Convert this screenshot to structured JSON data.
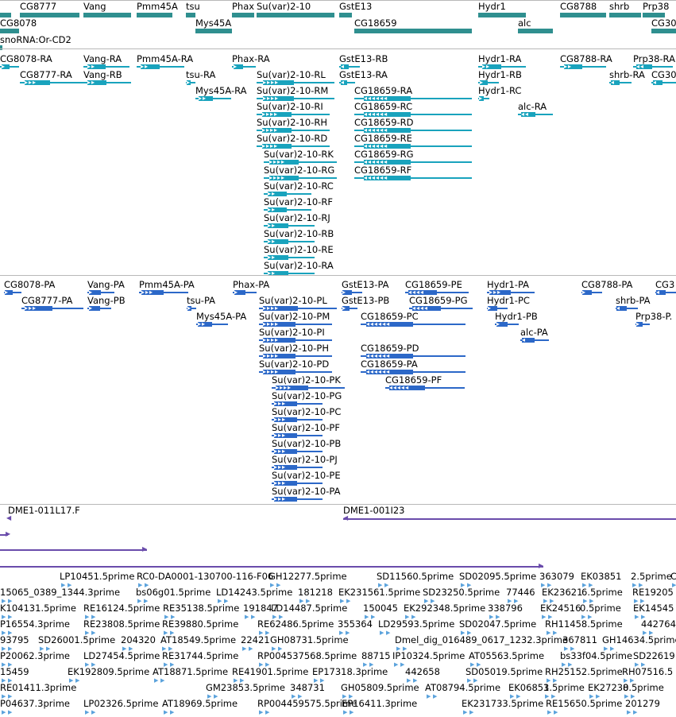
{
  "colors": {
    "gene": "#2f8f8f",
    "transcript": "#19a3bd",
    "protein": "#2c68c8",
    "clone": "#6a4cab",
    "est": "#5aa2dc",
    "divider": "#b8b8b8"
  },
  "tracks": {
    "genes": [
      "CG8777",
      "Vang",
      "Pmm45A",
      "tsu",
      "Phax",
      "Su(var)2-10",
      "GstE13",
      "Hydr1",
      "CG8788",
      "shrb",
      "Prp38",
      "CG8078",
      "Mys45A",
      "CG18659",
      "alc",
      "CG30",
      "snoRNA:Or-CD2"
    ],
    "transcripts": [
      "CG8078-RA",
      "Vang-RA",
      "Pmm45A-RA",
      "Phax-RA",
      "GstE13-RB",
      "Hydr1-RA",
      "CG8788-RA",
      "Prp38-RA",
      "CG8777-RA",
      "Vang-RB",
      "tsu-RA",
      "Su(var)2-10-RL",
      "GstE13-RA",
      "Hydr1-RB",
      "shrb-RA",
      "CG30",
      "Mys45A-RA",
      "Su(var)2-10-RM",
      "CG18659-RA",
      "Hydr1-RC",
      "Su(var)2-10-RI",
      "CG18659-RC",
      "alc-RA",
      "Su(var)2-10-RH",
      "CG18659-RD",
      "Su(var)2-10-RD",
      "CG18659-RE",
      "Su(var)2-10-RK",
      "CG18659-RG",
      "Su(var)2-10-RG",
      "CG18659-RF",
      "Su(var)2-10-RC",
      "Su(var)2-10-RF",
      "Su(var)2-10-RJ",
      "Su(var)2-10-RB",
      "Su(var)2-10-RE",
      "Su(var)2-10-RA"
    ],
    "proteins": [
      "CG8078-PA",
      "Vang-PA",
      "Pmm45A-PA",
      "Phax-PA",
      "GstE13-PA",
      "CG18659-PE",
      "Hydr1-PA",
      "CG8788-PA",
      "CG3",
      "CG8777-PA",
      "Vang-PB",
      "tsu-PA",
      "Su(var)2-10-PL",
      "GstE13-PB",
      "CG18659-PG",
      "Hydr1-PC",
      "shrb-PA",
      "Mys45A-PA",
      "Su(var)2-10-PM",
      "CG18659-PC",
      "Hydr1-PB",
      "Prp38-P.",
      "Su(var)2-10-PI",
      "alc-PA",
      "CG18659-PD",
      "Su(var)2-10-PH",
      "CG18659-PA",
      "Su(var)2-10-PD",
      "CG18659-PF",
      "Su(var)2-10-PK",
      "Su(var)2-10-PG",
      "Su(var)2-10-PC",
      "Su(var)2-10-PF",
      "Su(var)2-10-PB",
      "Su(var)2-10-PJ",
      "Su(var)2-10-PE",
      "Su(var)2-10-PA"
    ],
    "clones": [
      "DME1-011L17.F",
      "DME1-001I23"
    ],
    "ests": [
      "LP10451.5prime",
      "RC0-DA0001-130700-116-F06",
      "GH12277.5prime",
      "SD11560.5prime",
      "SD02095.5prime",
      "363079",
      "EK03851",
      "2.5prime",
      "C",
      "15065_0389_1344.3prime",
      "bs06g01.5prime",
      "LD14243.5prime",
      "181218",
      "EK231561.5prime",
      "SD23250.5prime",
      "77446",
      "EK23621",
      "6.5prime",
      "RE19205",
      "K104131.5prime",
      "RE16124.5prime",
      "RE35138.5prime",
      "191847",
      "LD14487.5prime",
      "150045",
      "EK292348.5prime",
      "338796",
      "EK24516",
      "0.5prime",
      "EK14545",
      "P16554.3prime",
      "RE23808.5prime",
      "RE39880.5prime",
      "RE62486.5prime",
      "355364",
      "LD29593.5prime",
      "SD02047.5prime",
      "RH11458.5prime",
      "442764",
      "93795",
      "SD26001.5prime",
      "204320",
      "AT18549.5prime",
      "22421",
      "GH08731.5prime",
      "Dmel_dig_016489_0617_1232.3prime",
      "367811",
      "GH14634.5prime",
      "P20062.3prime",
      "LD27454.5prime",
      "RE31744.5prime",
      "RP004537568.5prime",
      "88715",
      "IP10324.5prime",
      "AT05563.5prime",
      "bs33f04.5prime",
      "SD22619",
      "15459",
      "EK192809.5prime",
      "AT18871.5prime",
      "RE41901.5prime",
      "EP17318.3prime",
      "442658",
      "SD05019.5prime",
      "RH25152.5prime",
      "RH07516.5",
      "RE01411.3prime",
      "GM23853.5prime",
      "348731",
      "GH05809.5prime",
      "AT08794.5prime",
      "EK06851",
      "3.5prime",
      "EK27230",
      "8.5prime",
      "P04637.3prime",
      "LP02326.5prime",
      "AT18969.5prime",
      "RP004459575.5prime",
      "EP16411.3prime",
      "EK231733.5prime",
      "RE15650.5prime",
      "201279"
    ]
  }
}
